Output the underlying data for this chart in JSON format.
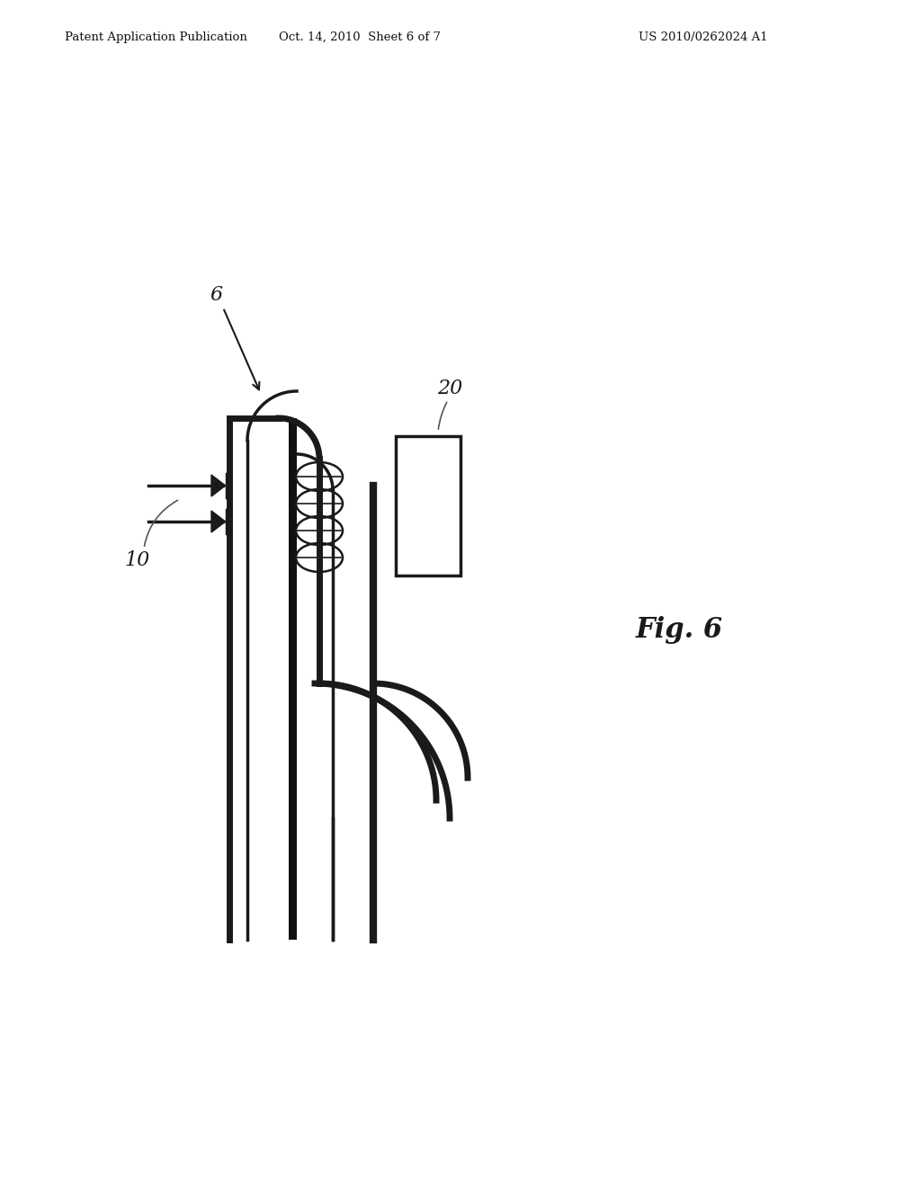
{
  "bg_color": "#ffffff",
  "header_left": "Patent Application Publication",
  "header_mid": "Oct. 14, 2010  Sheet 6 of 7",
  "header_right": "US 2010/0262024 A1",
  "fig_label": "Fig. 6",
  "label_6": "6",
  "label_10": "10",
  "label_20": "20",
  "line_color": "#1a1a1a"
}
